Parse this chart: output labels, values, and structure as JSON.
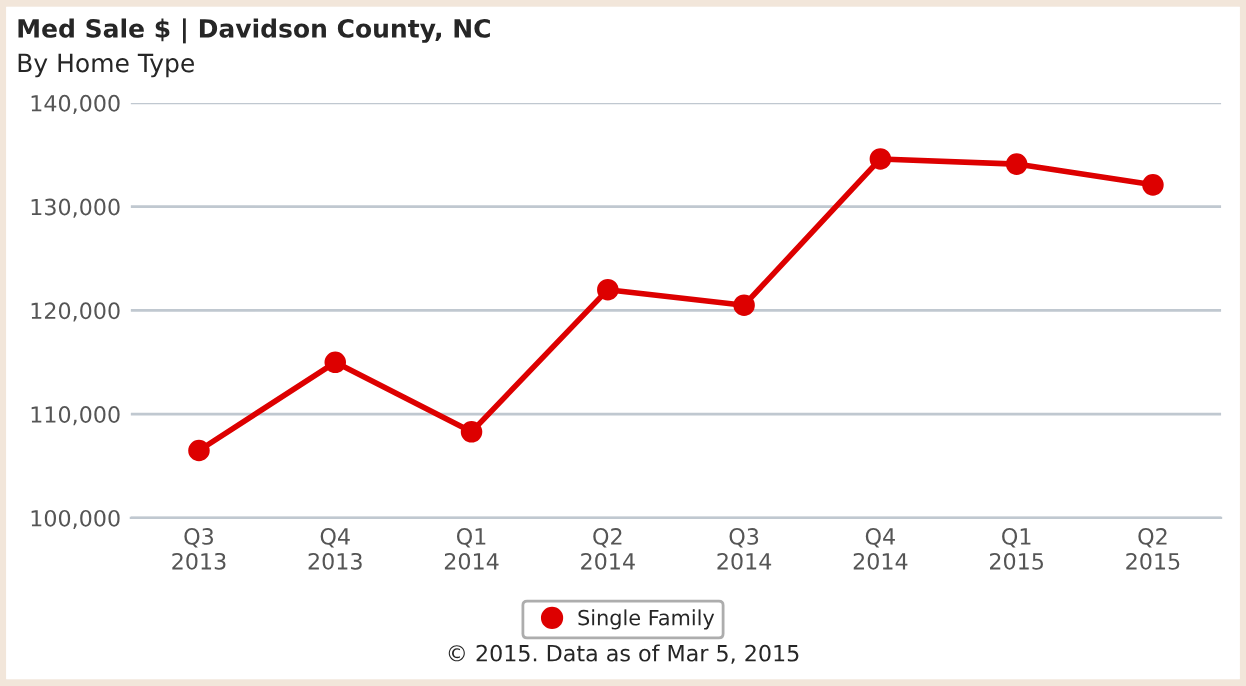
{
  "chart_data": {
    "type": "line",
    "title": "Med Sale $ | Davidson County, NC",
    "subtitle": "By Home Type",
    "categories": [
      "Q3\n2013",
      "Q4\n2013",
      "Q1\n2014",
      "Q2\n2014",
      "Q3\n2014",
      "Q4\n2014",
      "Q1\n2015",
      "Q2\n2015"
    ],
    "series": [
      {
        "name": "Single Family",
        "color": "#dd0000",
        "values": [
          106500,
          115000,
          108300,
          122000,
          120500,
          134600,
          134100,
          132100
        ]
      }
    ],
    "ylim": [
      100000,
      140000
    ],
    "yticks": [
      {
        "value": 100000,
        "label": "100,000"
      },
      {
        "value": 110000,
        "label": "110,000"
      },
      {
        "value": 120000,
        "label": "120,000"
      },
      {
        "value": 130000,
        "label": "130,000"
      },
      {
        "value": 140000,
        "label": "140,000"
      }
    ],
    "grid": "y",
    "legend": "bottom",
    "marker": "circle",
    "line_style": "solid",
    "annotations": [
      "© 2015. Data as of Mar 5, 2015"
    ]
  }
}
